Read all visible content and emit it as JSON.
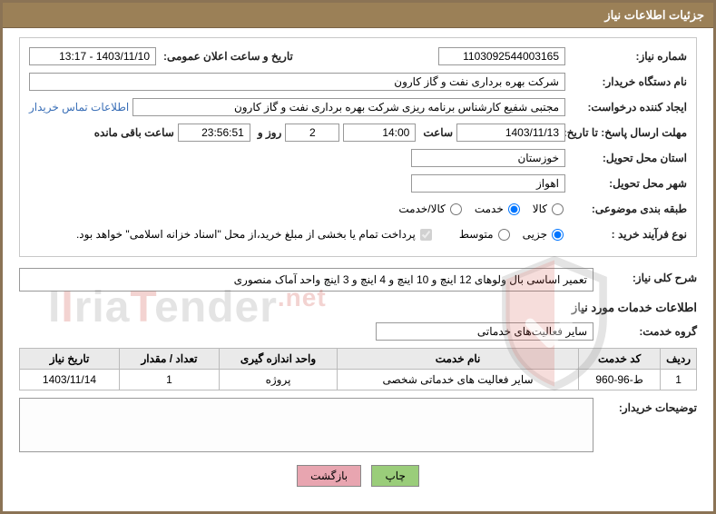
{
  "header": {
    "title": "جزئیات اطلاعات نیاز"
  },
  "info": {
    "need_no_label": "شماره نیاز:",
    "need_no": "1103092544003165",
    "announce_label": "تاریخ و ساعت اعلان عمومی:",
    "announce_value": "1403/11/10 - 13:17",
    "buyer_label": "نام دستگاه خریدار:",
    "buyer_value": "شرکت بهره برداری نفت و گاز کارون",
    "requester_label": "ایجاد کننده درخواست:",
    "requester_value": "مجتبی شفیع کارشناس برنامه ریزی شرکت بهره برداری نفت و گاز کارون",
    "contact_link": "اطلاعات تماس خریدار",
    "deadline_label": "مهلت ارسال پاسخ: تا تاریخ:",
    "deadline_date": "1403/11/13",
    "time_label": "ساعت",
    "deadline_time": "14:00",
    "days_value": "2",
    "days_label": "روز و",
    "hours_value": "23:56:51",
    "hours_label": "ساعت باقی مانده",
    "province_label": "استان محل تحویل:",
    "province_value": "خوزستان",
    "city_label": "شهر محل تحویل:",
    "city_value": "اهواز",
    "class_label": "طبقه بندی موضوعی:",
    "class_opts": {
      "goods": "کالا",
      "service": "خدمت",
      "both": "کالا/خدمت"
    },
    "process_label": "نوع فرآیند خرید :",
    "process_opts": {
      "partial": "جزیی",
      "medium": "متوسط"
    },
    "payment_note": "پرداخت تمام یا بخشی از مبلغ خرید،از محل \"اسناد خزانه اسلامی\" خواهد بود."
  },
  "desc": {
    "label": "شرح کلی نیاز:",
    "value": "تعمیر اساسی بال ولوهای 12 اینچ و 10 اینچ و 4 اینچ و 3 اینچ واحد آماک منصوری"
  },
  "service_info": {
    "title": "اطلاعات خدمات مورد نیاز",
    "group_label": "گروه خدمت:",
    "group_value": "سایر فعالیت‌های خدماتی"
  },
  "table": {
    "headers": {
      "row": "ردیف",
      "code": "کد خدمت",
      "name": "نام خدمت",
      "unit": "واحد اندازه گیری",
      "qty": "تعداد / مقدار",
      "date": "تاریخ نیاز"
    },
    "rows": [
      {
        "row": "1",
        "code": "ط-96-960",
        "name": "سایر فعالیت های خدماتی شخصی",
        "unit": "پروژه",
        "qty": "1",
        "date": "1403/11/14"
      }
    ]
  },
  "notes": {
    "label": "توضیحات خریدار:"
  },
  "buttons": {
    "print": "چاپ",
    "back": "بازگشت"
  },
  "colors": {
    "header_bg": "#9b8057",
    "border": "#8b7355"
  }
}
